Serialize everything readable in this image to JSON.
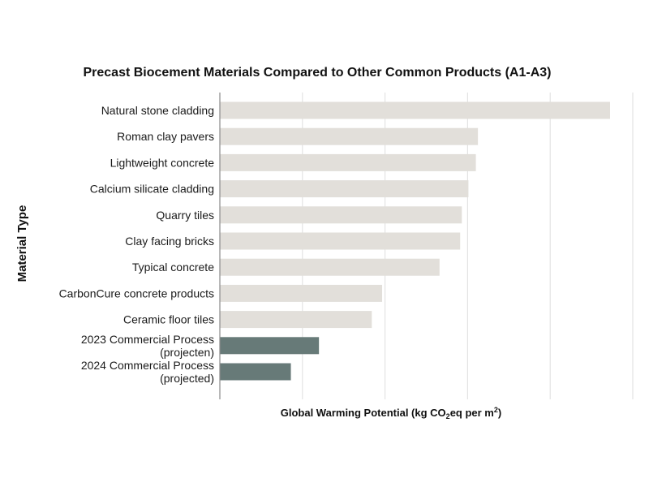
{
  "chart_data": {
    "type": "bar",
    "orientation": "horizontal",
    "title": "Precast Biocement Materials Compared to Other Common Products (A1-A3)",
    "xlabel_parts": {
      "before": "Global Warming Potential (kg CO",
      "sub": "2",
      "middle": "eq per m",
      "sup": "2",
      "after": ")"
    },
    "ylabel": "Material Type",
    "xlim": [
      0,
      100
    ],
    "gridlines": [
      0,
      20,
      40,
      60,
      80,
      100
    ],
    "x_tick_labels_shown": false,
    "categories": [
      [
        "Natural stone cladding"
      ],
      [
        "Roman clay pavers"
      ],
      [
        "Lightweight concrete"
      ],
      [
        "Calcium silicate cladding"
      ],
      [
        "Quarry tiles"
      ],
      [
        "Clay facing bricks"
      ],
      [
        "Typical concrete"
      ],
      [
        "CarbonCure concrete products"
      ],
      [
        "Ceramic floor tiles"
      ],
      [
        "2023 Commercial Process",
        "(projecten)"
      ],
      [
        "2024 Commercial Process",
        "(projected)"
      ]
    ],
    "values": [
      94.5,
      62.5,
      62.0,
      60.2,
      58.6,
      58.2,
      53.2,
      39.3,
      36.8,
      24.0,
      17.2
    ],
    "highlight": [
      false,
      false,
      false,
      false,
      false,
      false,
      false,
      false,
      false,
      true,
      true
    ],
    "colors": {
      "default_bar": "#e2dfda",
      "highlight_bar": "#677a78",
      "gridline": "#e3e3e3",
      "axis": "#8a8a8a"
    }
  }
}
